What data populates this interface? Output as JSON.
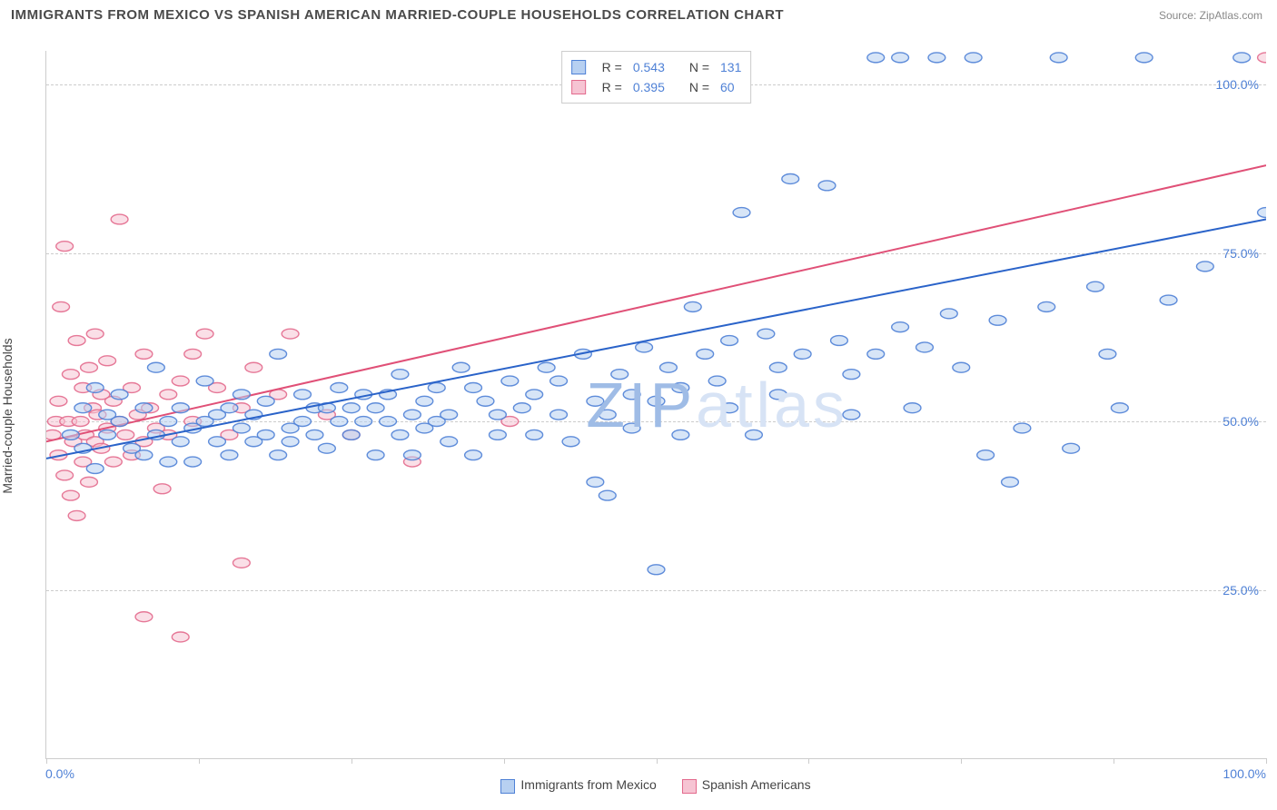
{
  "title": "IMMIGRANTS FROM MEXICO VS SPANISH AMERICAN MARRIED-COUPLE HOUSEHOLDS CORRELATION CHART",
  "source": "Source: ZipAtlas.com",
  "ylabel": "Married-couple Households",
  "watermark": "ZIPatlas",
  "axes": {
    "xlim": [
      0,
      100
    ],
    "ylim": [
      0,
      105
    ],
    "xticks": [
      0,
      12.5,
      25,
      37.5,
      50,
      62.5,
      75,
      87.5,
      100
    ],
    "ygrid": [
      25,
      50,
      75,
      100
    ],
    "ylabels": [
      "25.0%",
      "50.0%",
      "75.0%",
      "100.0%"
    ],
    "xmin_label": "0.0%",
    "xmax_label": "100.0%",
    "tick_label_color": "#4f81d6",
    "grid_color": "#cccccc"
  },
  "legend_top": {
    "r_label": "R =",
    "n_label": "N =",
    "value_color": "#4f81d6",
    "series": [
      {
        "swatch_fill": "#b7d0f1",
        "swatch_stroke": "#4f81d6",
        "r": "0.543",
        "n": "131"
      },
      {
        "swatch_fill": "#f6c4d3",
        "swatch_stroke": "#e36a8d",
        "r": "0.395",
        "n": "60"
      }
    ]
  },
  "legend_bottom": [
    {
      "label": "Immigrants from Mexico",
      "fill": "#b7d0f1",
      "stroke": "#4f81d6"
    },
    {
      "label": "Spanish Americans",
      "fill": "#f6c4d3",
      "stroke": "#e36a8d"
    }
  ],
  "series_blue": {
    "marker_fill": "#b7d0f1",
    "marker_stroke": "#4f81d6",
    "marker_fill_opacity": 0.55,
    "marker_stroke_opacity": 0.9,
    "marker_radius": 7,
    "line_color": "#2a63c9",
    "line_width": 2,
    "trend": {
      "x1": 0,
      "y1": 44.5,
      "x2": 100,
      "y2": 80
    },
    "points": [
      [
        2,
        48
      ],
      [
        3,
        52
      ],
      [
        3,
        46
      ],
      [
        4,
        43
      ],
      [
        4,
        55
      ],
      [
        5,
        48
      ],
      [
        5,
        51
      ],
      [
        6,
        50
      ],
      [
        6,
        54
      ],
      [
        7,
        46
      ],
      [
        8,
        52
      ],
      [
        8,
        45
      ],
      [
        9,
        48
      ],
      [
        9,
        58
      ],
      [
        10,
        50
      ],
      [
        10,
        44
      ],
      [
        11,
        47
      ],
      [
        11,
        52
      ],
      [
        12,
        49
      ],
      [
        12,
        44
      ],
      [
        13,
        50
      ],
      [
        13,
        56
      ],
      [
        14,
        47
      ],
      [
        14,
        51
      ],
      [
        15,
        52
      ],
      [
        15,
        45
      ],
      [
        16,
        49
      ],
      [
        16,
        54
      ],
      [
        17,
        47
      ],
      [
        17,
        51
      ],
      [
        18,
        53
      ],
      [
        18,
        48
      ],
      [
        19,
        45
      ],
      [
        19,
        60
      ],
      [
        20,
        49
      ],
      [
        20,
        47
      ],
      [
        21,
        50
      ],
      [
        21,
        54
      ],
      [
        22,
        48
      ],
      [
        22,
        52
      ],
      [
        23,
        52
      ],
      [
        23,
        46
      ],
      [
        24,
        50
      ],
      [
        24,
        55
      ],
      [
        25,
        52
      ],
      [
        25,
        48
      ],
      [
        26,
        54
      ],
      [
        26,
        50
      ],
      [
        27,
        45
      ],
      [
        27,
        52
      ],
      [
        28,
        54
      ],
      [
        28,
        50
      ],
      [
        29,
        48
      ],
      [
        29,
        57
      ],
      [
        30,
        51
      ],
      [
        30,
        45
      ],
      [
        31,
        53
      ],
      [
        31,
        49
      ],
      [
        32,
        55
      ],
      [
        32,
        50
      ],
      [
        33,
        47
      ],
      [
        33,
        51
      ],
      [
        34,
        58
      ],
      [
        35,
        45
      ],
      [
        35,
        55
      ],
      [
        36,
        53
      ],
      [
        37,
        51
      ],
      [
        37,
        48
      ],
      [
        38,
        56
      ],
      [
        39,
        52
      ],
      [
        40,
        54
      ],
      [
        40,
        48
      ],
      [
        41,
        58
      ],
      [
        42,
        51
      ],
      [
        42,
        56
      ],
      [
        43,
        47
      ],
      [
        44,
        60
      ],
      [
        45,
        53
      ],
      [
        46,
        51
      ],
      [
        46,
        39
      ],
      [
        47,
        57
      ],
      [
        48,
        54
      ],
      [
        48,
        49
      ],
      [
        49,
        61
      ],
      [
        50,
        53
      ],
      [
        50,
        28
      ],
      [
        51,
        58
      ],
      [
        52,
        55
      ],
      [
        52,
        48
      ],
      [
        53,
        67
      ],
      [
        54,
        60
      ],
      [
        55,
        56
      ],
      [
        56,
        62
      ],
      [
        56,
        52
      ],
      [
        57,
        81
      ],
      [
        58,
        48
      ],
      [
        59,
        63
      ],
      [
        60,
        58
      ],
      [
        60,
        54
      ],
      [
        61,
        86
      ],
      [
        62,
        60
      ],
      [
        64,
        85
      ],
      [
        65,
        62
      ],
      [
        66,
        57
      ],
      [
        66,
        51
      ],
      [
        68,
        60
      ],
      [
        68,
        104
      ],
      [
        70,
        64
      ],
      [
        70,
        104
      ],
      [
        71,
        52
      ],
      [
        72,
        61
      ],
      [
        73,
        104
      ],
      [
        74,
        66
      ],
      [
        75,
        58
      ],
      [
        76,
        104
      ],
      [
        77,
        45
      ],
      [
        78,
        65
      ],
      [
        79,
        41
      ],
      [
        80,
        49
      ],
      [
        82,
        67
      ],
      [
        83,
        104
      ],
      [
        84,
        46
      ],
      [
        86,
        70
      ],
      [
        87,
        60
      ],
      [
        88,
        52
      ],
      [
        90,
        104
      ],
      [
        92,
        68
      ],
      [
        95,
        73
      ],
      [
        98,
        104
      ],
      [
        100,
        81
      ],
      [
        45,
        41
      ]
    ]
  },
  "series_pink": {
    "marker_fill": "#f6c4d3",
    "marker_stroke": "#e36a8d",
    "marker_fill_opacity": 0.55,
    "marker_stroke_opacity": 0.9,
    "marker_radius": 7,
    "line_color": "#e05077",
    "line_width": 2,
    "trend": {
      "x1": 0,
      "y1": 47,
      "x2": 100,
      "y2": 88
    },
    "points": [
      [
        0.5,
        48
      ],
      [
        0.8,
        50
      ],
      [
        1,
        45
      ],
      [
        1,
        53
      ],
      [
        1.2,
        67
      ],
      [
        1.5,
        42
      ],
      [
        1.5,
        76
      ],
      [
        1.8,
        50
      ],
      [
        2,
        39
      ],
      [
        2,
        57
      ],
      [
        2.2,
        47
      ],
      [
        2.5,
        62
      ],
      [
        2.5,
        36
      ],
      [
        2.8,
        50
      ],
      [
        3,
        44
      ],
      [
        3,
        55
      ],
      [
        3.2,
        48
      ],
      [
        3.5,
        58
      ],
      [
        3.5,
        41
      ],
      [
        3.8,
        52
      ],
      [
        4,
        47
      ],
      [
        4,
        63
      ],
      [
        4.2,
        51
      ],
      [
        4.5,
        46
      ],
      [
        4.5,
        54
      ],
      [
        5,
        49
      ],
      [
        5,
        59
      ],
      [
        5.5,
        44
      ],
      [
        5.5,
        53
      ],
      [
        6,
        50
      ],
      [
        6,
        80
      ],
      [
        6.5,
        48
      ],
      [
        7,
        55
      ],
      [
        7,
        45
      ],
      [
        7.5,
        51
      ],
      [
        8,
        47
      ],
      [
        8,
        60
      ],
      [
        8,
        21
      ],
      [
        8.5,
        52
      ],
      [
        9,
        49
      ],
      [
        9.5,
        40
      ],
      [
        10,
        54
      ],
      [
        10,
        48
      ],
      [
        11,
        56
      ],
      [
        11,
        18
      ],
      [
        12,
        60
      ],
      [
        12,
        50
      ],
      [
        13,
        63
      ],
      [
        14,
        55
      ],
      [
        15,
        48
      ],
      [
        16,
        52
      ],
      [
        16,
        29
      ],
      [
        17,
        58
      ],
      [
        19,
        54
      ],
      [
        20,
        63
      ],
      [
        23,
        51
      ],
      [
        25,
        48
      ],
      [
        30,
        44
      ],
      [
        38,
        50
      ],
      [
        100,
        104
      ]
    ]
  }
}
